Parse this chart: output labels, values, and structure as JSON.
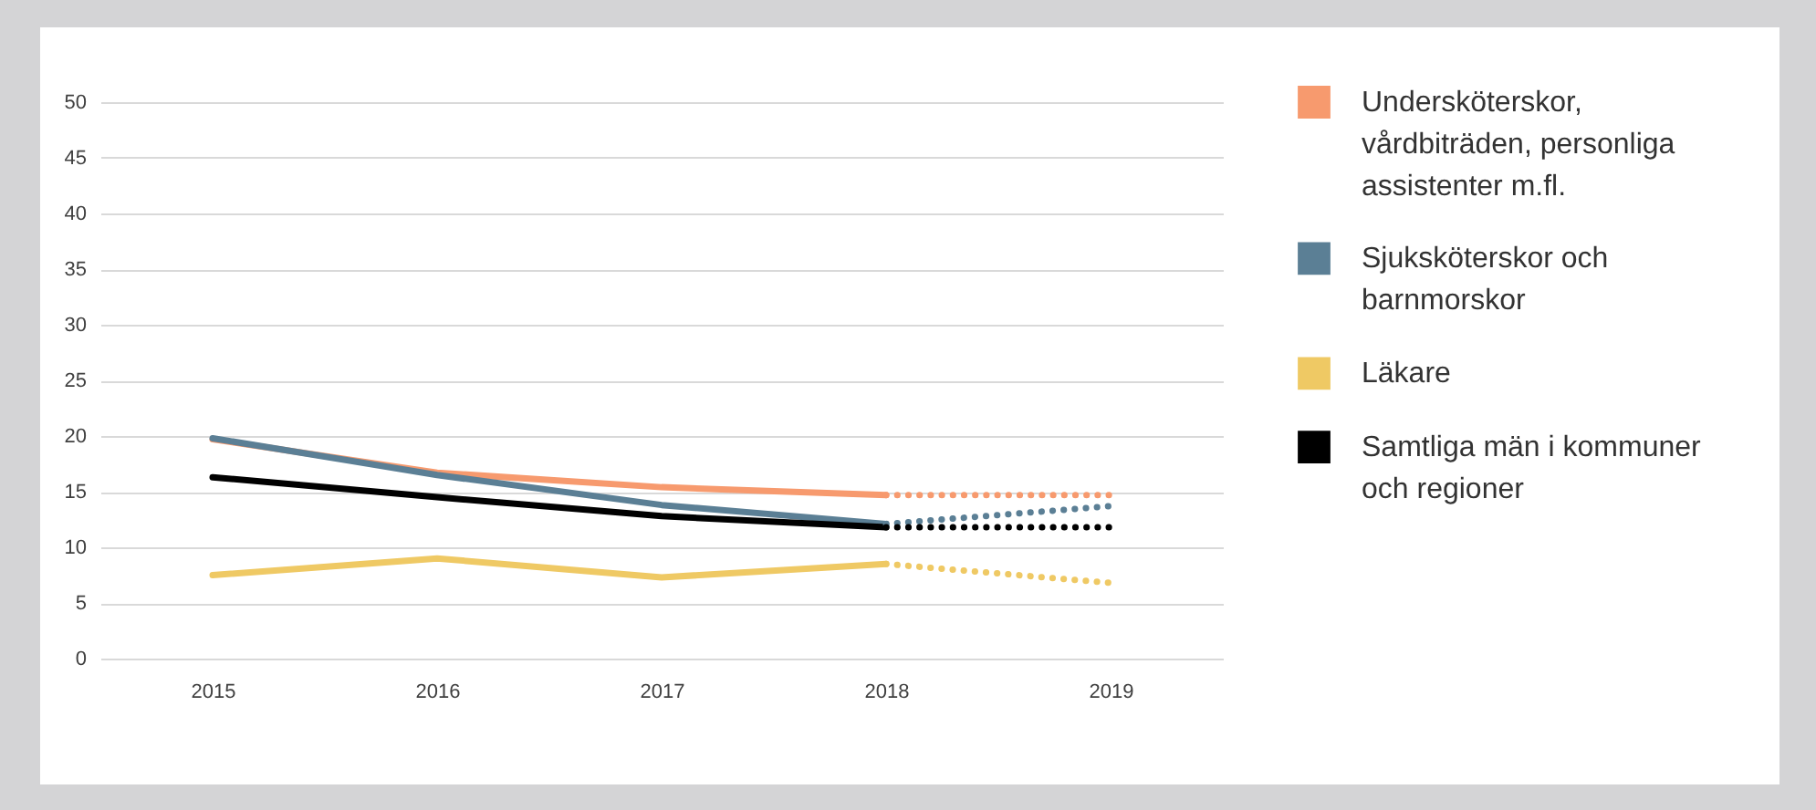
{
  "chart_data": {
    "type": "line",
    "categories": [
      "2015",
      "2016",
      "2017",
      "2018",
      "2019"
    ],
    "ylim": [
      0,
      50
    ],
    "yticks": [
      0,
      5,
      10,
      15,
      20,
      25,
      30,
      35,
      40,
      45,
      50
    ],
    "grid": "y",
    "legend": "right",
    "line_style": "solid",
    "marker": "none",
    "series": [
      {
        "name": "Undersköterskor, vårdbiträden, personliga assistenter m.fl.",
        "color": "#f79a6e",
        "values": [
          19.7,
          16.7,
          15.4,
          14.7,
          null
        ]
      },
      {
        "name": "Sjuksköterskor och barnmorskor",
        "color": "#5b7f95",
        "values": [
          19.8,
          16.5,
          13.8,
          12.1,
          null
        ]
      },
      {
        "name": "Läkare",
        "color": "#efc964",
        "values": [
          7.5,
          9.0,
          7.3,
          8.5,
          null
        ]
      },
      {
        "name": "Samtliga män i kommuner och regioner",
        "color": "#000000",
        "values": [
          16.3,
          14.5,
          12.8,
          11.8,
          null
        ]
      },
      {
        "color": "#f79a6e",
        "line_style": "dotted",
        "values": [
          null,
          null,
          null,
          14.7,
          14.7
        ]
      },
      {
        "color": "#5b7f95",
        "line_style": "dotted",
        "values": [
          null,
          null,
          null,
          12.1,
          13.7
        ]
      },
      {
        "color": "#efc964",
        "line_style": "dotted",
        "values": [
          null,
          null,
          null,
          8.5,
          6.8
        ]
      },
      {
        "color": "#000000",
        "line_style": "dotted",
        "values": [
          null,
          null,
          null,
          11.8,
          11.8
        ]
      }
    ]
  }
}
